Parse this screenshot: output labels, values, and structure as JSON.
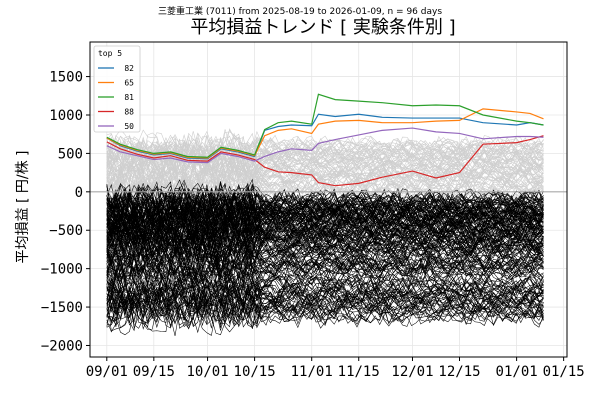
{
  "chart_data": {
    "type": "line",
    "subtitle": "三菱重工業 (7011) from 2025-08-19 to 2026-01-09, n = 96 days",
    "title": "平均損益トレンド [ 実験条件別 ]",
    "xlabel": "",
    "ylabel": "平均損益 [ 円/株 ]",
    "xlim": [
      "2025-08-27",
      "2026-01-16"
    ],
    "ylim": [
      -2150,
      1950
    ],
    "x_ticks": [
      "2025-09-01",
      "2025-09-15",
      "2025-10-01",
      "2025-10-15",
      "2025-11-01",
      "2025-11-15",
      "2025-12-01",
      "2025-12-15",
      "2026-01-01",
      "2026-01-15"
    ],
    "x_tick_labels": [
      "09/01",
      "09/15",
      "10/01",
      "10/15",
      "11/01",
      "11/15",
      "12/01",
      "12/15",
      "01/01",
      "01/15"
    ],
    "y_ticks": [
      -2000,
      -1500,
      -1000,
      -500,
      0,
      500,
      1000,
      1500
    ],
    "y_tick_labels": [
      "−2000",
      "−1500",
      "−1000",
      "−500",
      "0",
      "500",
      "1000",
      "1500"
    ],
    "grid": true,
    "legend": {
      "title": "top 5",
      "placement": "top-left",
      "entries": [
        {
          "label": "82",
          "color": "#1f77b4"
        },
        {
          "label": "65",
          "color": "#ff7f0e"
        },
        {
          "label": "81",
          "color": "#2ca02c"
        },
        {
          "label": "88",
          "color": "#d62728"
        },
        {
          "label": "50",
          "color": "#9467bd"
        }
      ]
    },
    "series": [
      {
        "name": "82",
        "color": "#1f77b4",
        "points": [
          [
            "2025-09-01",
            700
          ],
          [
            "2025-09-05",
            600
          ],
          [
            "2025-09-10",
            530
          ],
          [
            "2025-09-15",
            480
          ],
          [
            "2025-09-20",
            500
          ],
          [
            "2025-09-25",
            440
          ],
          [
            "2025-10-01",
            430
          ],
          [
            "2025-10-05",
            560
          ],
          [
            "2025-10-10",
            520
          ],
          [
            "2025-10-15",
            460
          ],
          [
            "2025-10-18",
            800
          ],
          [
            "2025-10-22",
            850
          ],
          [
            "2025-10-26",
            870
          ],
          [
            "2025-11-01",
            860
          ],
          [
            "2025-11-03",
            1010
          ],
          [
            "2025-11-08",
            980
          ],
          [
            "2025-11-15",
            1010
          ],
          [
            "2025-11-22",
            970
          ],
          [
            "2025-12-01",
            960
          ],
          [
            "2025-12-08",
            960
          ],
          [
            "2025-12-15",
            960
          ],
          [
            "2025-12-22",
            900
          ],
          [
            "2026-01-01",
            870
          ],
          [
            "2026-01-05",
            900
          ],
          [
            "2026-01-09",
            870
          ]
        ]
      },
      {
        "name": "65",
        "color": "#ff7f0e",
        "points": [
          [
            "2025-09-01",
            700
          ],
          [
            "2025-09-05",
            610
          ],
          [
            "2025-09-10",
            540
          ],
          [
            "2025-09-15",
            490
          ],
          [
            "2025-09-20",
            510
          ],
          [
            "2025-09-25",
            450
          ],
          [
            "2025-10-01",
            440
          ],
          [
            "2025-10-05",
            570
          ],
          [
            "2025-10-10",
            530
          ],
          [
            "2025-10-15",
            470
          ],
          [
            "2025-10-18",
            730
          ],
          [
            "2025-10-22",
            800
          ],
          [
            "2025-10-26",
            820
          ],
          [
            "2025-11-01",
            760
          ],
          [
            "2025-11-03",
            880
          ],
          [
            "2025-11-08",
            920
          ],
          [
            "2025-11-15",
            930
          ],
          [
            "2025-11-22",
            900
          ],
          [
            "2025-12-01",
            900
          ],
          [
            "2025-12-08",
            920
          ],
          [
            "2025-12-15",
            930
          ],
          [
            "2025-12-22",
            1080
          ],
          [
            "2026-01-01",
            1040
          ],
          [
            "2026-01-05",
            1020
          ],
          [
            "2026-01-09",
            950
          ]
        ]
      },
      {
        "name": "81",
        "color": "#2ca02c",
        "points": [
          [
            "2025-09-01",
            710
          ],
          [
            "2025-09-05",
            620
          ],
          [
            "2025-09-10",
            550
          ],
          [
            "2025-09-15",
            500
          ],
          [
            "2025-09-20",
            520
          ],
          [
            "2025-09-25",
            460
          ],
          [
            "2025-10-01",
            450
          ],
          [
            "2025-10-05",
            580
          ],
          [
            "2025-10-10",
            540
          ],
          [
            "2025-10-15",
            480
          ],
          [
            "2025-10-18",
            810
          ],
          [
            "2025-10-22",
            900
          ],
          [
            "2025-10-26",
            920
          ],
          [
            "2025-11-01",
            880
          ],
          [
            "2025-11-03",
            1270
          ],
          [
            "2025-11-08",
            1200
          ],
          [
            "2025-11-15",
            1180
          ],
          [
            "2025-11-22",
            1160
          ],
          [
            "2025-12-01",
            1120
          ],
          [
            "2025-12-08",
            1130
          ],
          [
            "2025-12-15",
            1120
          ],
          [
            "2025-12-22",
            1000
          ],
          [
            "2026-01-01",
            920
          ],
          [
            "2026-01-05",
            900
          ],
          [
            "2026-01-09",
            870
          ]
        ]
      },
      {
        "name": "88",
        "color": "#d62728",
        "points": [
          [
            "2025-09-01",
            650
          ],
          [
            "2025-09-05",
            560
          ],
          [
            "2025-09-10",
            490
          ],
          [
            "2025-09-15",
            440
          ],
          [
            "2025-09-20",
            470
          ],
          [
            "2025-09-25",
            410
          ],
          [
            "2025-10-01",
            400
          ],
          [
            "2025-10-05",
            520
          ],
          [
            "2025-10-10",
            480
          ],
          [
            "2025-10-15",
            420
          ],
          [
            "2025-10-18",
            320
          ],
          [
            "2025-10-22",
            260
          ],
          [
            "2025-10-26",
            250
          ],
          [
            "2025-11-01",
            220
          ],
          [
            "2025-11-03",
            120
          ],
          [
            "2025-11-08",
            80
          ],
          [
            "2025-11-15",
            110
          ],
          [
            "2025-11-22",
            190
          ],
          [
            "2025-12-01",
            270
          ],
          [
            "2025-12-08",
            180
          ],
          [
            "2025-12-15",
            250
          ],
          [
            "2025-12-22",
            620
          ],
          [
            "2026-01-01",
            640
          ],
          [
            "2026-01-05",
            680
          ],
          [
            "2026-01-09",
            730
          ]
        ]
      },
      {
        "name": "50",
        "color": "#9467bd",
        "points": [
          [
            "2025-09-01",
            600
          ],
          [
            "2025-09-05",
            520
          ],
          [
            "2025-09-10",
            470
          ],
          [
            "2025-09-15",
            420
          ],
          [
            "2025-09-20",
            440
          ],
          [
            "2025-09-25",
            390
          ],
          [
            "2025-10-01",
            380
          ],
          [
            "2025-10-05",
            500
          ],
          [
            "2025-10-10",
            460
          ],
          [
            "2025-10-15",
            400
          ],
          [
            "2025-10-18",
            460
          ],
          [
            "2025-10-22",
            520
          ],
          [
            "2025-10-26",
            560
          ],
          [
            "2025-11-01",
            540
          ],
          [
            "2025-11-03",
            630
          ],
          [
            "2025-11-08",
            680
          ],
          [
            "2025-11-15",
            740
          ],
          [
            "2025-11-22",
            800
          ],
          [
            "2025-12-01",
            830
          ],
          [
            "2025-12-08",
            780
          ],
          [
            "2025-12-15",
            760
          ],
          [
            "2025-12-22",
            690
          ],
          [
            "2026-01-01",
            720
          ],
          [
            "2026-01-05",
            720
          ],
          [
            "2026-01-09",
            710
          ]
        ]
      }
    ],
    "background_series": {
      "description_count_gray": 70,
      "description_count_black": 180,
      "gray_range": [
        0,
        1050
      ],
      "black_range": [
        -2050,
        0
      ]
    }
  }
}
